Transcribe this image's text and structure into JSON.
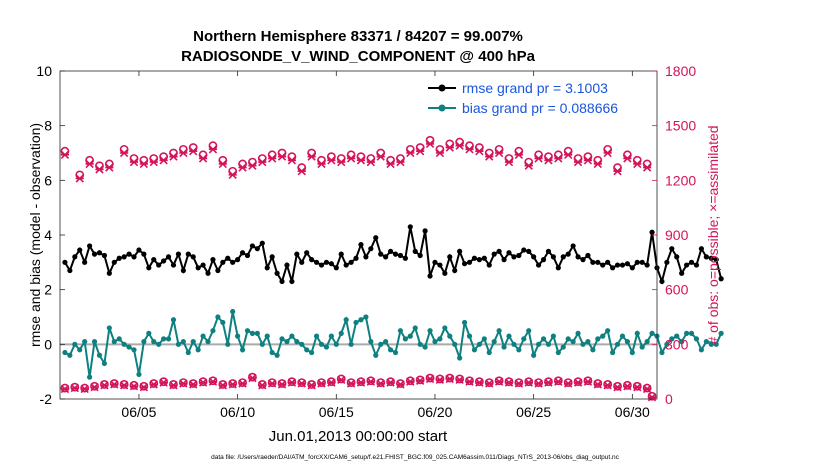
{
  "chart_data": {
    "type": "line",
    "title_line1": "Northern Hemisphere 83371 / 84207 = 99.007%",
    "title_line2": "RADIOSONDE_V_WIND_COMPONENT @ 400 hPa",
    "xlabel": "Jun.01,2013 00:00:00 start",
    "ylabel_left": "rmse and bias (model - observation)",
    "ylabel_right": "# of obs: o=possible; ×=assimilated",
    "footer": "data file: /Users/raeder/DAI/ATM_forcXX/CAM6_setup/f.e21.FHIST_BGC.f09_025.CAM6assim.011/Diags_NTrS_2013-06/obs_diag_output.nc",
    "xlim": [
      1,
      31.25
    ],
    "x_ticks": [
      5,
      10,
      15,
      20,
      25,
      30
    ],
    "x_tick_labels": [
      "06/05",
      "06/10",
      "06/15",
      "06/20",
      "06/25",
      "06/30"
    ],
    "ylim_left": [
      -2,
      10
    ],
    "y_ticks_left": [
      -2,
      0,
      2,
      4,
      6,
      8,
      10
    ],
    "y_tick_labels_left": [
      "-2",
      "0",
      "2",
      "4",
      "6",
      "8",
      "10"
    ],
    "ylim_right": [
      0,
      1800
    ],
    "y_ticks_right": [
      0,
      300,
      600,
      900,
      1200,
      1500,
      1800
    ],
    "y_tick_labels_right": [
      "0",
      "300",
      "600",
      "900",
      "1200",
      "1500",
      "1800"
    ],
    "legend": {
      "position": "top-right",
      "entries": [
        "rmse grand pr = 3.1003",
        "bias grand pr = 0.088666"
      ]
    },
    "colors": {
      "rmse": "#000000",
      "bias": "#0e8080",
      "obs": "#d4145a",
      "zero_line": "#aaaaaa",
      "legend_text": "#1a55e0"
    },
    "x_start": 1.25,
    "x_step": 0.25,
    "series": [
      {
        "name": "rmse",
        "values": [
          3.0,
          2.7,
          3.2,
          3.45,
          3.0,
          3.6,
          3.3,
          3.35,
          3.25,
          2.6,
          3.0,
          3.15,
          3.2,
          3.3,
          3.2,
          3.45,
          3.3,
          2.8,
          3.1,
          2.9,
          3.05,
          3.2,
          2.9,
          3.3,
          2.7,
          3.3,
          3.2,
          2.8,
          2.9,
          2.6,
          3.1,
          2.7,
          3.0,
          3.15,
          3.0,
          3.1,
          3.35,
          3.25,
          3.6,
          3.5,
          3.7,
          2.8,
          3.2,
          2.6,
          2.3,
          2.9,
          2.3,
          3.3,
          3.0,
          3.35,
          3.1,
          3.0,
          2.9,
          3.0,
          2.95,
          2.8,
          3.3,
          2.9,
          3.0,
          3.15,
          3.65,
          3.2,
          3.5,
          3.9,
          3.3,
          3.2,
          3.4,
          3.3,
          3.25,
          3.15,
          4.3,
          3.4,
          3.25,
          4.15,
          2.5,
          3.0,
          2.9,
          2.6,
          3.2,
          2.7,
          3.4,
          2.95,
          3.0,
          3.15,
          3.1,
          3.15,
          2.9,
          3.3,
          3.4,
          3.1,
          3.35,
          3.2,
          3.25,
          3.45,
          3.4,
          3.2,
          2.9,
          3.1,
          3.4,
          3.2,
          2.8,
          3.2,
          3.3,
          3.6,
          3.2,
          3.1,
          3.25,
          3.0,
          3.0,
          2.9,
          3.0,
          2.8,
          2.9,
          2.9,
          2.95,
          2.8,
          3.0,
          3.0,
          2.9,
          4.1,
          2.8,
          2.3,
          3.0,
          3.5,
          3.2,
          2.6,
          2.9,
          3.0,
          2.9,
          3.5,
          3.2,
          3.15,
          3.1,
          2.4
        ]
      },
      {
        "name": "bias",
        "values": [
          -0.3,
          -0.4,
          0.0,
          -0.2,
          0.1,
          -1.2,
          0.1,
          -0.4,
          -0.7,
          0.6,
          0.1,
          0.2,
          0.0,
          -0.1,
          -0.2,
          -1.1,
          0.1,
          0.4,
          0.1,
          0.0,
          0.2,
          0.2,
          0.9,
          0.0,
          0.1,
          -0.3,
          0.1,
          -0.2,
          0.3,
          0.1,
          0.5,
          1.0,
          0.8,
          0.0,
          1.2,
          0.3,
          -0.2,
          0.5,
          0.4,
          0.4,
          0.0,
          0.3,
          -0.3,
          -0.4,
          0.2,
          0.1,
          0.3,
          0.1,
          0.0,
          -0.2,
          -0.3,
          0.3,
          0.0,
          -0.1,
          0.3,
          0.0,
          0.4,
          0.9,
          0.0,
          0.8,
          0.9,
          1.0,
          0.1,
          -0.4,
          0.0,
          0.1,
          -0.2,
          -0.3,
          0.5,
          0.2,
          0.3,
          0.6,
          0.0,
          -0.1,
          0.5,
          0.1,
          0.2,
          0.6,
          0.3,
          0.0,
          -0.5,
          0.8,
          0.3,
          -0.2,
          0.0,
          0.2,
          -0.3,
          0.1,
          0.5,
          -0.1,
          0.3,
          0.0,
          -0.2,
          0.2,
          0.5,
          -0.4,
          0.0,
          0.2,
          0.0,
          0.3,
          -0.3,
          -0.1,
          0.2,
          0.1,
          0.4,
          0.0,
          0.1,
          -0.2,
          0.2,
          0.3,
          0.5,
          -0.3,
          0.0,
          0.3,
          0.1,
          -0.3,
          0.4,
          -0.1,
          0.1,
          0.4,
          0.3,
          -0.3,
          0.0,
          0.2,
          0.3,
          0.1,
          0.4,
          0.4,
          0.2,
          -0.2,
          0.1,
          0.0,
          0.0,
          0.4
        ]
      },
      {
        "name": "obs_possible_12z",
        "marker": "o",
        "axis": "right",
        "x": [
          1.25,
          2.0,
          2.5,
          3.0,
          3.5,
          4.25,
          4.75,
          5.25,
          5.75,
          6.25,
          6.75,
          7.25,
          7.75,
          8.25,
          8.75,
          9.25,
          9.75,
          10.25,
          10.75,
          11.25,
          11.75,
          12.25,
          12.75,
          13.25,
          13.75,
          14.25,
          14.75,
          15.25,
          15.75,
          16.25,
          16.75,
          17.25,
          17.75,
          18.25,
          18.75,
          19.25,
          19.75,
          20.25,
          20.75,
          21.25,
          21.75,
          22.25,
          22.75,
          23.25,
          23.75,
          24.25,
          24.75,
          25.25,
          25.75,
          26.25,
          26.75,
          27.25,
          27.75,
          28.25,
          28.75,
          29.25,
          29.75,
          30.25,
          30.75
        ],
        "values": [
          1360,
          1230,
          1310,
          1280,
          1290,
          1370,
          1320,
          1310,
          1320,
          1330,
          1350,
          1370,
          1380,
          1340,
          1390,
          1310,
          1250,
          1290,
          1300,
          1320,
          1340,
          1350,
          1330,
          1270,
          1350,
          1310,
          1330,
          1320,
          1340,
          1330,
          1320,
          1350,
          1310,
          1320,
          1370,
          1380,
          1420,
          1370,
          1400,
          1410,
          1390,
          1380,
          1350,
          1370,
          1320,
          1360,
          1300,
          1340,
          1330,
          1340,
          1360,
          1320,
          1330,
          1310,
          1370,
          1270,
          1340,
          1310,
          1290
        ]
      },
      {
        "name": "obs_assimilated_12z",
        "marker": "x",
        "axis": "right",
        "x": [
          1.25,
          2.0,
          2.5,
          3.0,
          3.5,
          4.25,
          4.75,
          5.25,
          5.75,
          6.25,
          6.75,
          7.25,
          7.75,
          8.25,
          8.75,
          9.25,
          9.75,
          10.25,
          10.75,
          11.25,
          11.75,
          12.25,
          12.75,
          13.25,
          13.75,
          14.25,
          14.75,
          15.25,
          15.75,
          16.25,
          16.75,
          17.25,
          17.75,
          18.25,
          18.75,
          19.25,
          19.75,
          20.25,
          20.75,
          21.25,
          21.75,
          22.25,
          22.75,
          23.25,
          23.75,
          24.25,
          24.75,
          25.25,
          25.75,
          26.25,
          26.75,
          27.25,
          27.75,
          28.25,
          28.75,
          29.25,
          29.75,
          30.25,
          30.75
        ],
        "values": [
          1340,
          1210,
          1290,
          1260,
          1270,
          1350,
          1300,
          1290,
          1300,
          1310,
          1330,
          1350,
          1360,
          1320,
          1370,
          1290,
          1230,
          1270,
          1280,
          1300,
          1320,
          1330,
          1310,
          1250,
          1330,
          1290,
          1310,
          1300,
          1320,
          1310,
          1300,
          1330,
          1290,
          1300,
          1350,
          1360,
          1400,
          1350,
          1380,
          1390,
          1370,
          1360,
          1330,
          1350,
          1300,
          1340,
          1280,
          1320,
          1310,
          1320,
          1340,
          1300,
          1310,
          1290,
          1350,
          1250,
          1320,
          1290,
          1270
        ]
      },
      {
        "name": "obs_possible_00z",
        "marker": "o",
        "axis": "right",
        "x": [
          1.25,
          1.75,
          2.25,
          2.75,
          3.25,
          3.75,
          4.25,
          4.75,
          5.25,
          5.75,
          6.25,
          6.75,
          7.25,
          7.75,
          8.25,
          8.75,
          9.25,
          9.75,
          10.25,
          10.75,
          11.25,
          11.75,
          12.25,
          12.75,
          13.25,
          13.75,
          14.25,
          14.75,
          15.25,
          15.75,
          16.25,
          16.75,
          17.25,
          17.75,
          18.25,
          18.75,
          19.25,
          19.75,
          20.25,
          20.75,
          21.25,
          21.75,
          22.25,
          22.75,
          23.25,
          23.75,
          24.25,
          24.75,
          25.25,
          25.75,
          26.25,
          26.75,
          27.25,
          27.75,
          28.25,
          28.75,
          29.25,
          29.75,
          30.25,
          30.75,
          31.0
        ],
        "values": [
          60,
          65,
          60,
          70,
          80,
          85,
          80,
          75,
          70,
          85,
          95,
          80,
          90,
          85,
          95,
          100,
          80,
          85,
          90,
          120,
          80,
          90,
          85,
          95,
          90,
          80,
          90,
          95,
          110,
          90,
          95,
          100,
          90,
          95,
          85,
          100,
          105,
          115,
          110,
          115,
          110,
          100,
          95,
          90,
          100,
          95,
          90,
          95,
          90,
          95,
          100,
          90,
          95,
          100,
          85,
          80,
          70,
          75,
          70,
          60,
          15
        ]
      },
      {
        "name": "obs_assimilated_00z",
        "marker": "x",
        "axis": "right",
        "x": [
          1.25,
          1.75,
          2.25,
          2.75,
          3.25,
          3.75,
          4.25,
          4.75,
          5.25,
          5.75,
          6.25,
          6.75,
          7.25,
          7.75,
          8.25,
          8.75,
          9.25,
          9.75,
          10.25,
          10.75,
          11.25,
          11.75,
          12.25,
          12.75,
          13.25,
          13.75,
          14.25,
          14.75,
          15.25,
          15.75,
          16.25,
          16.75,
          17.25,
          17.75,
          18.25,
          18.75,
          19.25,
          19.75,
          20.25,
          20.75,
          21.25,
          21.75,
          22.25,
          22.75,
          23.25,
          23.75,
          24.25,
          24.75,
          25.25,
          25.75,
          26.25,
          26.75,
          27.25,
          27.75,
          28.25,
          28.75,
          29.25,
          29.75,
          30.25,
          30.75,
          31.0
        ],
        "values": [
          55,
          60,
          55,
          65,
          75,
          80,
          75,
          70,
          65,
          80,
          90,
          75,
          85,
          80,
          90,
          95,
          75,
          80,
          85,
          115,
          75,
          85,
          80,
          90,
          85,
          75,
          85,
          90,
          105,
          85,
          90,
          95,
          85,
          90,
          80,
          95,
          100,
          110,
          105,
          110,
          105,
          95,
          90,
          85,
          95,
          90,
          85,
          90,
          85,
          90,
          95,
          85,
          90,
          95,
          80,
          75,
          65,
          70,
          65,
          55,
          10
        ]
      }
    ]
  }
}
